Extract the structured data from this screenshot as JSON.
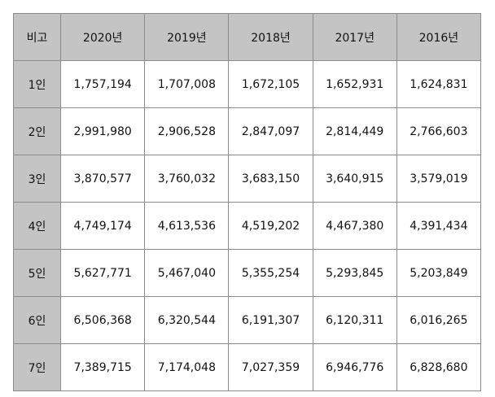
{
  "table": {
    "corner_label": "비고",
    "columns": [
      "2020년",
      "2019년",
      "2018년",
      "2017년",
      "2016년"
    ],
    "rows": [
      {
        "label": "1인",
        "values": [
          "1,757,194",
          "1,707,008",
          "1,672,105",
          "1,652,931",
          "1,624,831"
        ]
      },
      {
        "label": "2인",
        "values": [
          "2,991,980",
          "2,906,528",
          "2,847,097",
          "2,814,449",
          "2,766,603"
        ]
      },
      {
        "label": "3인",
        "values": [
          "3,870,577",
          "3,760,032",
          "3,683,150",
          "3,640,915",
          "3,579,019"
        ]
      },
      {
        "label": "4인",
        "values": [
          "4,749,174",
          "4,613,536",
          "4,519,202",
          "4,467,380",
          "4,391,434"
        ]
      },
      {
        "label": "5인",
        "values": [
          "5,627,771",
          "5,467,040",
          "5,355,254",
          "5,293,845",
          "5,203,849"
        ]
      },
      {
        "label": "6인",
        "values": [
          "6,506,368",
          "6,320,544",
          "6,191,307",
          "6,120,311",
          "6,016,265"
        ]
      },
      {
        "label": "7인",
        "values": [
          "7,389,715",
          "7,174,048",
          "7,027,359",
          "6,946,776",
          "6,828,680"
        ]
      }
    ]
  }
}
